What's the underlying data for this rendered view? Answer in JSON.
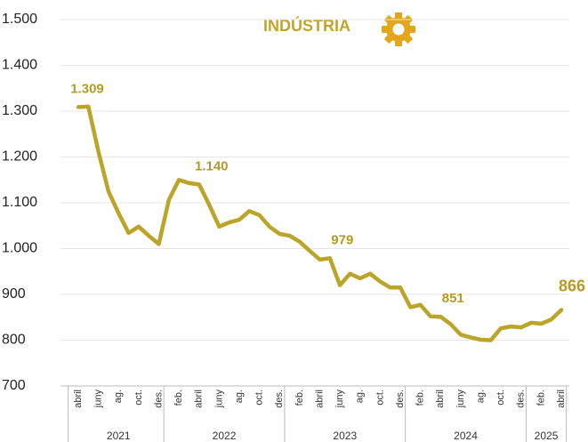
{
  "chart_data": {
    "type": "line",
    "title": "INDÚSTRIA",
    "categories": [
      "abril",
      null,
      "juny",
      null,
      "ag.",
      null,
      "oct.",
      null,
      "des.",
      null,
      "feb.",
      null,
      "abril",
      null,
      "juny",
      null,
      "ag.",
      null,
      "oct.",
      null,
      "des.",
      null,
      "feb.",
      null,
      "abril",
      null,
      "juny",
      null,
      "ag.",
      null,
      "oct.",
      null,
      "des.",
      null,
      "feb.",
      null,
      "abril",
      null,
      "juny",
      null,
      "ag.",
      null,
      "oct.",
      null,
      "des.",
      null,
      "feb.",
      null,
      "abril"
    ],
    "year_groups": [
      {
        "label": "2021",
        "months": 9
      },
      {
        "label": "2022",
        "months": 12
      },
      {
        "label": "2023",
        "months": 12
      },
      {
        "label": "2024",
        "months": 12
      },
      {
        "label": "2025",
        "months": 4
      }
    ],
    "series": [
      {
        "name": "Indústria",
        "color": "#bba427",
        "values": [
          1309,
          1310,
          1212,
          1125,
          1077,
          1034,
          1048,
          1028,
          1010,
          1106,
          1150,
          1143,
          1140,
          1096,
          1048,
          1057,
          1063,
          1082,
          1073,
          1048,
          1032,
          1028,
          1015,
          995,
          976,
          979,
          920,
          945,
          935,
          945,
          928,
          915,
          915,
          872,
          877,
          852,
          851,
          835,
          812,
          806,
          801,
          800,
          826,
          830,
          828,
          838,
          836,
          845,
          866
        ],
        "value_labels": [
          "1.309",
          null,
          null,
          null,
          null,
          null,
          null,
          null,
          null,
          null,
          null,
          null,
          "1.140",
          null,
          null,
          null,
          null,
          null,
          null,
          null,
          null,
          null,
          null,
          null,
          null,
          "979",
          null,
          null,
          null,
          null,
          null,
          null,
          null,
          null,
          null,
          null,
          "851",
          null,
          null,
          null,
          null,
          null,
          null,
          null,
          null,
          null,
          null,
          null,
          "866"
        ]
      }
    ],
    "ylim": [
      700,
      1500
    ],
    "yticks": [
      700,
      800,
      900,
      {
        "value": 1000,
        "label": "1.000"
      },
      {
        "value": 1100,
        "label": "1.100"
      },
      {
        "value": 1200,
        "label": "1.200"
      },
      {
        "value": 1300,
        "label": "1.300"
      },
      {
        "value": 1400,
        "label": "1.400"
      },
      {
        "value": 1500,
        "label": "1.500"
      }
    ],
    "grid": true
  }
}
